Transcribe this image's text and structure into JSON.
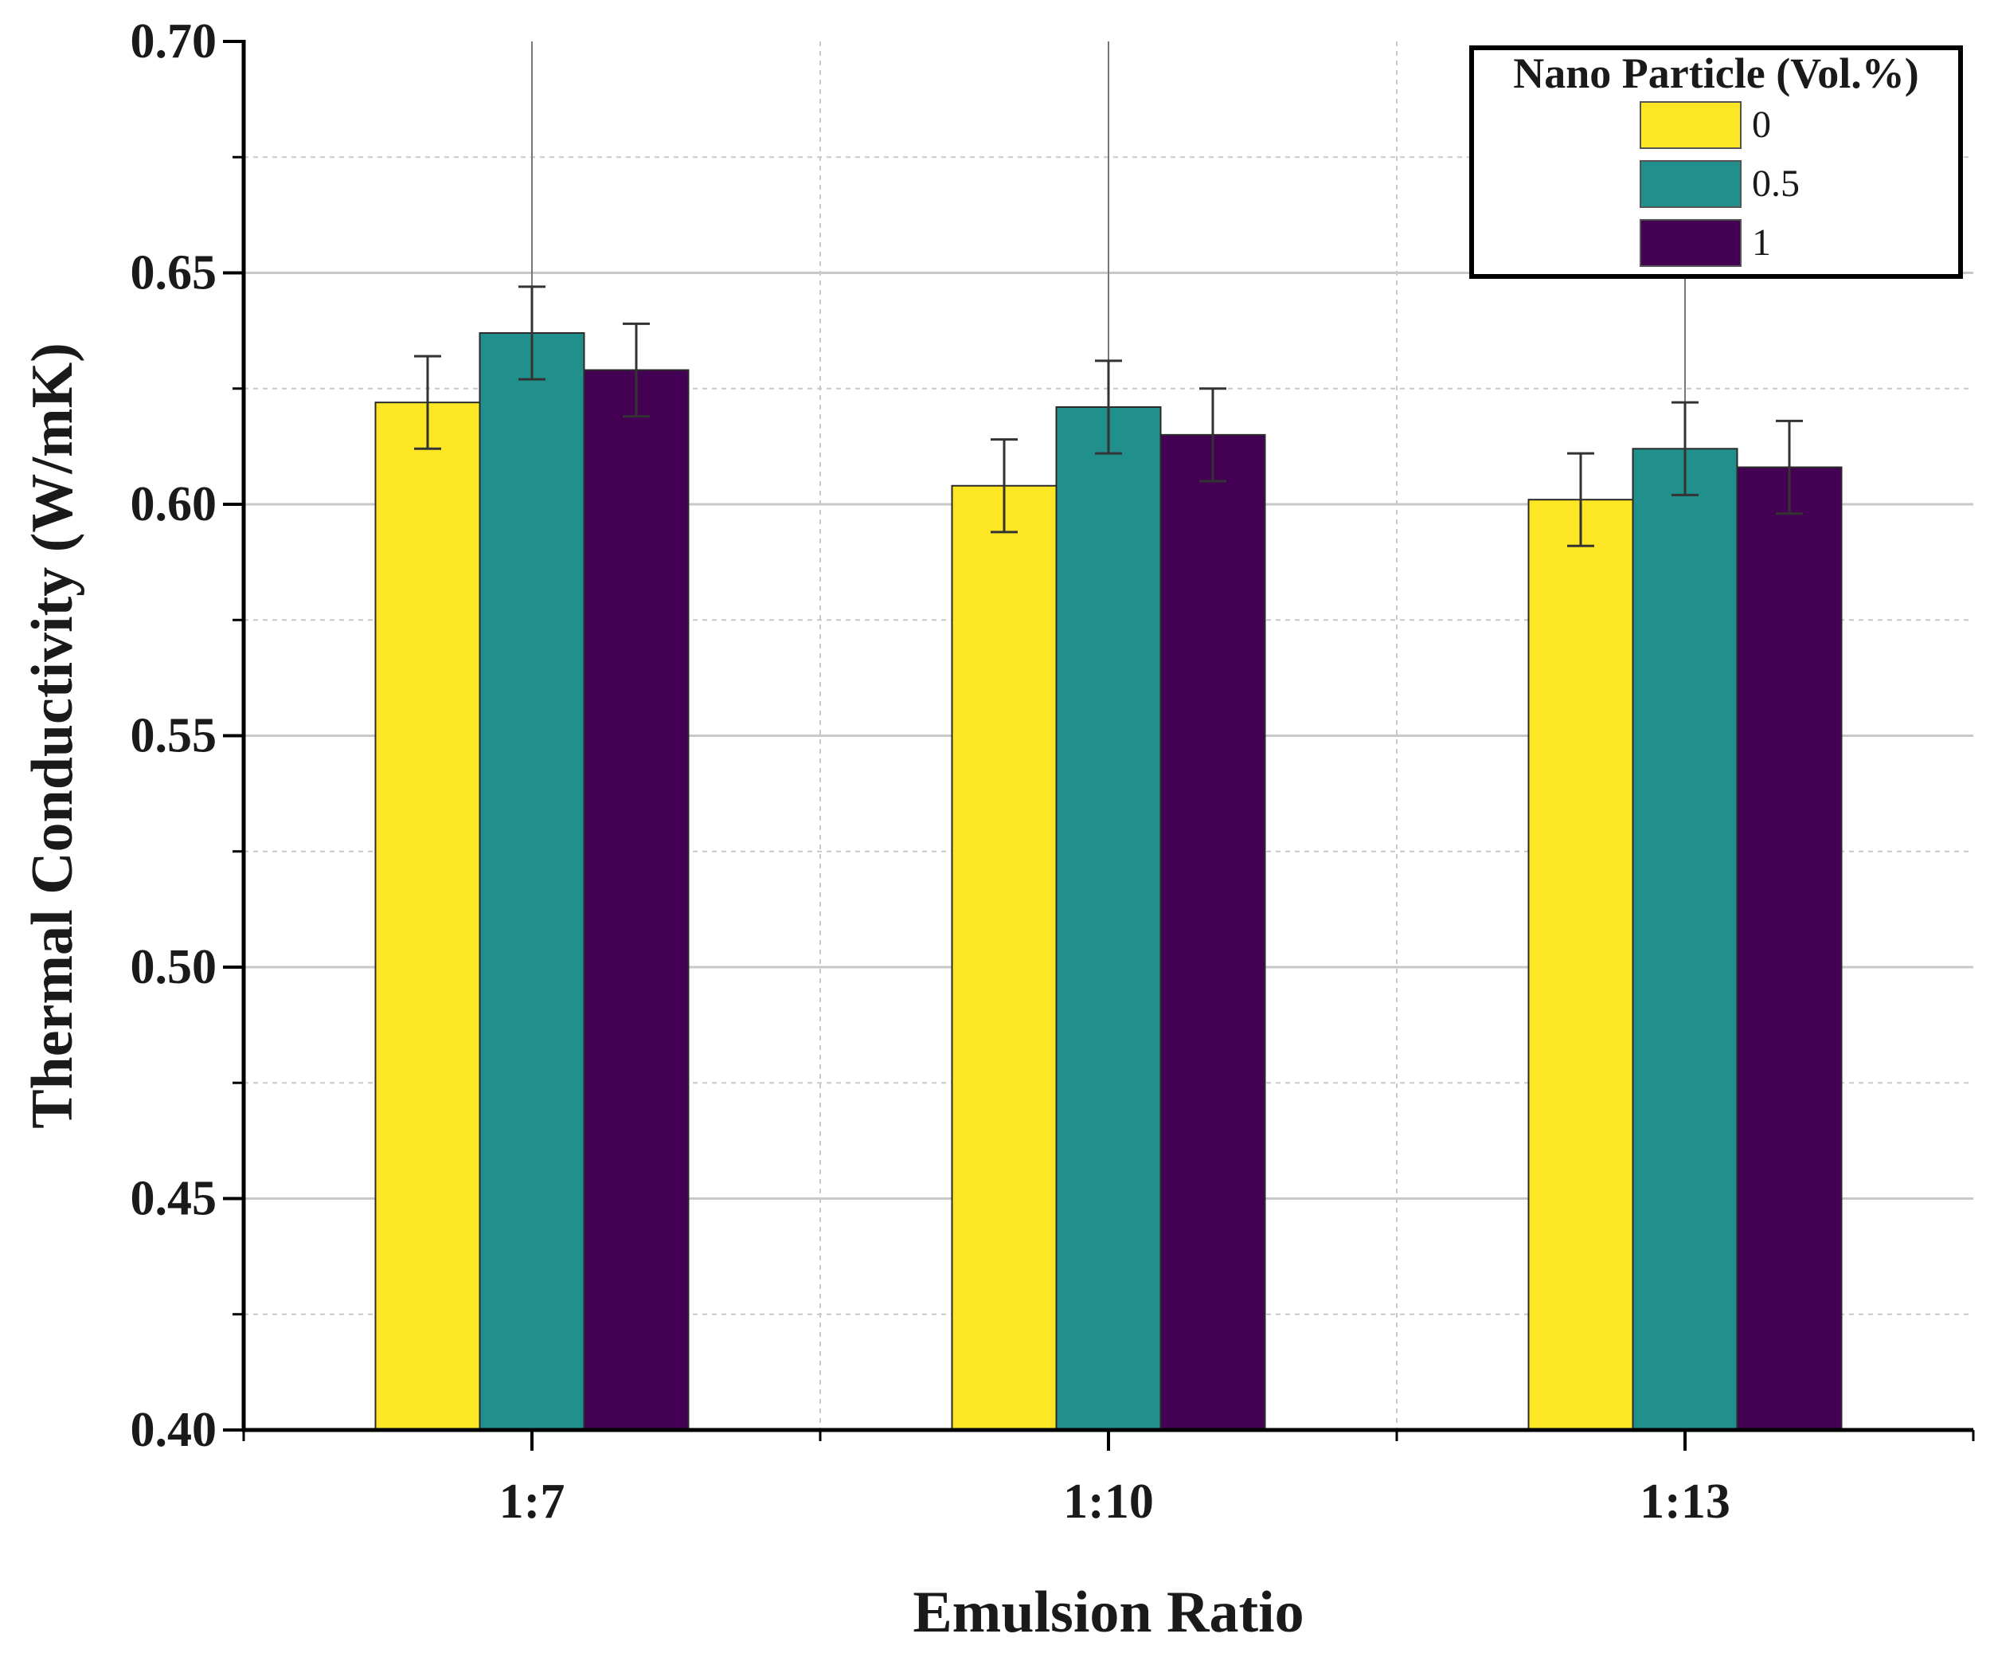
{
  "chart_data": {
    "type": "bar",
    "title": "",
    "xlabel": "Emulsion Ratio",
    "ylabel": "Thermal Conductivity (W/mK)",
    "ylim": [
      0.4,
      0.7
    ],
    "yticks": [
      "0.40",
      "0.45",
      "0.50",
      "0.55",
      "0.60",
      "0.65",
      "0.70"
    ],
    "categories": [
      "1:7",
      "1:10",
      "1:13"
    ],
    "grid": true,
    "legend": {
      "title": "Nano Particle (Vol.%)",
      "placement": "top-right"
    },
    "series": [
      {
        "name": "0",
        "color": "#fde725",
        "values": [
          0.622,
          0.604,
          0.601
        ],
        "errors": [
          0.01,
          0.01,
          0.01
        ]
      },
      {
        "name": "0.5",
        "color": "#21908d",
        "values": [
          0.637,
          0.621,
          0.612
        ],
        "errors": [
          0.01,
          0.01,
          0.01
        ]
      },
      {
        "name": "1",
        "color": "#440154",
        "values": [
          0.629,
          0.615,
          0.608
        ],
        "errors": [
          0.01,
          0.01,
          0.01
        ]
      }
    ]
  }
}
